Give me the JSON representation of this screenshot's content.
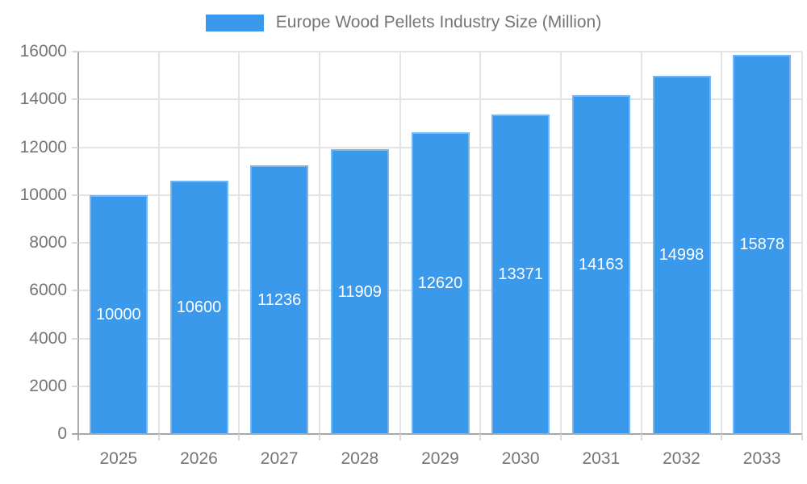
{
  "legend": {
    "label": "Europe Wood Pellets Industry Size (Million)"
  },
  "chart_data": {
    "type": "bar",
    "title": "Europe Wood Pellets Industry Size (Million)",
    "series_name": "Europe Wood Pellets Industry Size (Million)",
    "categories": [
      "2025",
      "2026",
      "2027",
      "2028",
      "2029",
      "2030",
      "2031",
      "2032",
      "2033"
    ],
    "values": [
      10000,
      10600,
      11236,
      11909,
      12620,
      13371,
      14163,
      14998,
      15878
    ],
    "data_labels": [
      "10000",
      "10600",
      "11236",
      "11909",
      "12620",
      "13371",
      "14163",
      "14998",
      "15878"
    ],
    "xlabel": "",
    "ylabel": "",
    "ylim": [
      0,
      16000
    ],
    "ytick_step": 2000,
    "y_tick_labels": [
      "0",
      "2000",
      "4000",
      "6000",
      "8000",
      "10000",
      "12000",
      "14000",
      "16000"
    ],
    "grid": true,
    "legend_position": "top-center",
    "bar_color": "#3B99EC",
    "bar_border_color": "#74B6F2",
    "data_label_color": "#FFFFFF",
    "axis_text_color": "#757575",
    "gridline_color": "#E4E4E4",
    "axis_line_color": "#A8A8A8",
    "tick_color": "#D9D9D9"
  }
}
